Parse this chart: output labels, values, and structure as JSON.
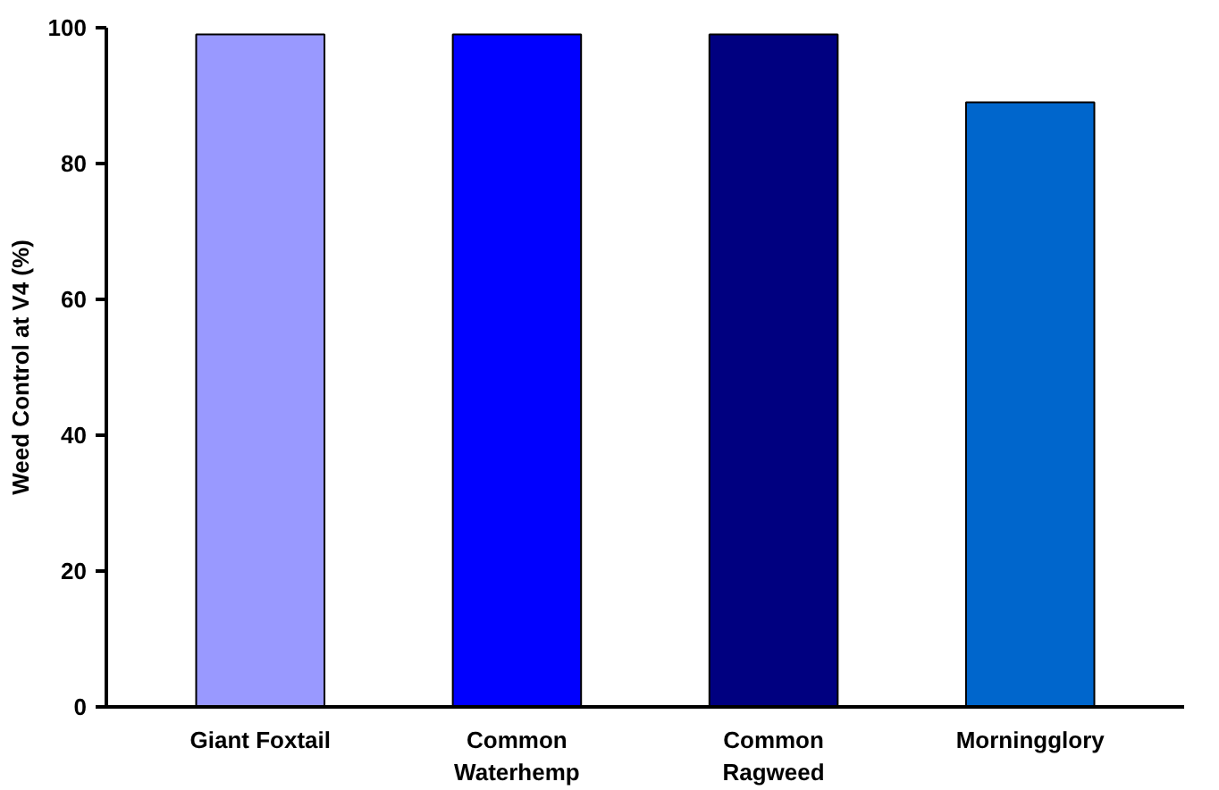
{
  "chart_data": {
    "type": "bar",
    "ylabel": "Weed Control at V4 (%)",
    "categories": [
      "Giant Foxtail",
      "Common Waterhemp",
      "Common Ragweed",
      "Morningglory"
    ],
    "values": [
      99,
      99,
      99,
      89
    ],
    "colors": [
      "#9999ff",
      "#0000ff",
      "#000080",
      "#0066cc"
    ],
    "ylim": [
      0,
      100
    ],
    "yticks": [
      0,
      20,
      40,
      60,
      80,
      100
    ],
    "grid": false
  }
}
